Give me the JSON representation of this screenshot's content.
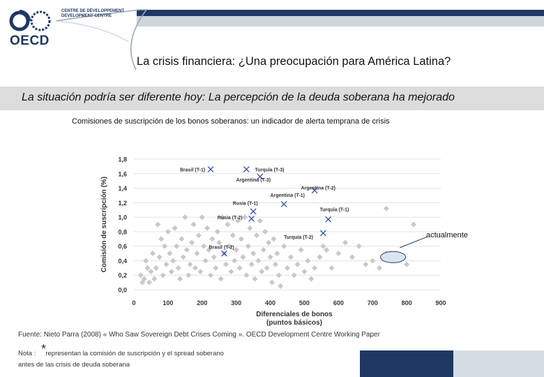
{
  "header": {
    "logo_text": "OECD",
    "ddc_text": [
      "CENTRE DE DÉVELOPPEMENT",
      "DEVELOPMENT CENTRE"
    ],
    "title": "La crisis financiera: ¿Una preocupación para América Latina?",
    "subtitle": "La situación podría ser diferente hoy:  La percepción de la deuda soberana ha mejorado"
  },
  "chart_title": "Comisiones de suscripción de los bonos soberanos: un indicador de alerta temprana de crisis",
  "callout": "actualmente",
  "footer": {
    "source": "Fuente: Nieto Parra (2008) « Who Saw Sovereign Debt Crises Coming ». OECD Development Centre Working Paper",
    "note_prefix": "Nota :",
    "note_star": "*",
    "note_text": "representan la comisión  de suscripción y el spread  soberano",
    "note_line2": "antes de las crisis de deuda soberana"
  },
  "colors": {
    "navy": "#1f3864",
    "marker_grey": "#c8c8c8",
    "cross_blue": "#2e4fa3",
    "callout_fill": "#dbe5f1"
  },
  "chart_data": {
    "type": "scatter",
    "xlabel": "Diferenciales de bonos (puntos básicos)",
    "ylabel": "Comisión de suscripción (%)",
    "xlim": [
      0,
      900
    ],
    "ylim": [
      0,
      1.8
    ],
    "xticks": [
      "0",
      "100",
      "200",
      "300",
      "400",
      "500",
      "600",
      "700",
      "800",
      "900"
    ],
    "yticks": [
      "0,0",
      "0,2",
      "0,4",
      "0,6",
      "0,8",
      "1,0",
      "1,2",
      "1,4",
      "1,6",
      "1,8"
    ],
    "grid": true,
    "series": [
      {
        "marker": "diamond",
        "points": [
          [
            20,
            0.2
          ],
          [
            25,
            0.1
          ],
          [
            30,
            0.15
          ],
          [
            35,
            0.4
          ],
          [
            40,
            0.3
          ],
          [
            45,
            0.1
          ],
          [
            50,
            0.25
          ],
          [
            55,
            0.5
          ],
          [
            60,
            0.15
          ],
          [
            65,
            0.3
          ],
          [
            70,
            0.9
          ],
          [
            75,
            0.45
          ],
          [
            80,
            0.7
          ],
          [
            85,
            0.2
          ],
          [
            90,
            0.6
          ],
          [
            95,
            0.35
          ],
          [
            100,
            0.8
          ],
          [
            105,
            0.5
          ],
          [
            110,
            0.25
          ],
          [
            115,
            0.4
          ],
          [
            120,
            0.85
          ],
          [
            125,
            0.6
          ],
          [
            130,
            0.3
          ],
          [
            135,
            0.15
          ],
          [
            140,
            0.7
          ],
          [
            145,
            0.45
          ],
          [
            150,
            1.0
          ],
          [
            155,
            0.55
          ],
          [
            160,
            0.2
          ],
          [
            165,
            0.35
          ],
          [
            170,
            0.65
          ],
          [
            175,
            0.9
          ],
          [
            180,
            0.3
          ],
          [
            185,
            0.5
          ],
          [
            190,
            0.75
          ],
          [
            195,
            0.25
          ],
          [
            200,
            1.0
          ],
          [
            205,
            0.6
          ],
          [
            210,
            0.4
          ],
          [
            215,
            0.85
          ],
          [
            220,
            0.55
          ],
          [
            225,
            0.2
          ],
          [
            230,
            0.7
          ],
          [
            235,
            0.45
          ],
          [
            240,
            0.3
          ],
          [
            245,
            0.8
          ],
          [
            250,
            0.65
          ],
          [
            255,
            0.15
          ],
          [
            260,
            1.0
          ],
          [
            265,
            0.5
          ],
          [
            270,
            0.35
          ],
          [
            275,
            0.9
          ],
          [
            280,
            0.6
          ],
          [
            285,
            0.25
          ],
          [
            290,
            0.75
          ],
          [
            295,
            0.4
          ],
          [
            300,
            0.55
          ],
          [
            305,
            0.95
          ],
          [
            310,
            0.3
          ],
          [
            315,
            0.7
          ],
          [
            320,
            0.45
          ],
          [
            325,
            1.0
          ],
          [
            330,
            0.2
          ],
          [
            335,
            0.6
          ],
          [
            340,
            0.85
          ],
          [
            345,
            0.35
          ],
          [
            350,
            0.5
          ],
          [
            355,
            0.15
          ],
          [
            360,
            0.75
          ],
          [
            365,
            0.4
          ],
          [
            370,
            0.95
          ],
          [
            375,
            0.25
          ],
          [
            380,
            0.55
          ],
          [
            385,
            0.8
          ],
          [
            390,
            0.3
          ],
          [
            395,
            0.65
          ],
          [
            400,
            0.45
          ],
          [
            405,
            0.1
          ],
          [
            410,
            0.7
          ],
          [
            415,
            0.35
          ],
          [
            420,
            0.5
          ],
          [
            425,
            0.2
          ],
          [
            430,
            0.05
          ],
          [
            440,
            0.6
          ],
          [
            450,
            0.3
          ],
          [
            460,
            0.45
          ],
          [
            470,
            0.2
          ],
          [
            480,
            0.35
          ],
          [
            490,
            0.55
          ],
          [
            500,
            0.25
          ],
          [
            510,
            0.4
          ],
          [
            520,
            0.15
          ],
          [
            530,
            0.3
          ],
          [
            545,
            0.45
          ],
          [
            555,
            0.6
          ],
          [
            565,
            0.55
          ],
          [
            580,
            0.3
          ],
          [
            600,
            0.5
          ],
          [
            620,
            0.65
          ],
          [
            640,
            0.45
          ],
          [
            660,
            0.6
          ],
          [
            680,
            0.35
          ],
          [
            700,
            0.4
          ],
          [
            720,
            0.3
          ],
          [
            740,
            0.5
          ],
          [
            760,
            0.45
          ],
          [
            800,
            0.35
          ],
          [
            820,
            0.9
          ],
          [
            740,
            1.12
          ]
        ]
      },
      {
        "marker": "cross",
        "points": [
          [
            225,
            1.66
          ],
          [
            330,
            1.66
          ],
          [
            370,
            1.56
          ],
          [
            350,
            1.08
          ],
          [
            345,
            0.98
          ],
          [
            440,
            1.18
          ],
          [
            530,
            1.37
          ],
          [
            570,
            0.97
          ],
          [
            555,
            0.78
          ],
          [
            265,
            0.5
          ]
        ]
      }
    ],
    "annotations": [
      {
        "text": "Brasil (T-1)",
        "x": 135,
        "y": 1.66
      },
      {
        "text": "Turquía (T-3)",
        "x": 355,
        "y": 1.66
      },
      {
        "text": "Argentina (T-3)",
        "x": 300,
        "y": 1.52
      },
      {
        "text": "Argentina (T-2)",
        "x": 490,
        "y": 1.41
      },
      {
        "text": "Argentina (T-1)",
        "x": 400,
        "y": 1.31
      },
      {
        "text": "Rusia (T-1)",
        "x": 290,
        "y": 1.2
      },
      {
        "text": "Turquía (T-1)",
        "x": 545,
        "y": 1.11
      },
      {
        "text": "Rusia (T-2)",
        "x": 245,
        "y": 1.0
      },
      {
        "text": "Turquía (T-2)",
        "x": 440,
        "y": 0.73
      },
      {
        "text": "Brasil (T-2)",
        "x": 220,
        "y": 0.59
      }
    ]
  }
}
